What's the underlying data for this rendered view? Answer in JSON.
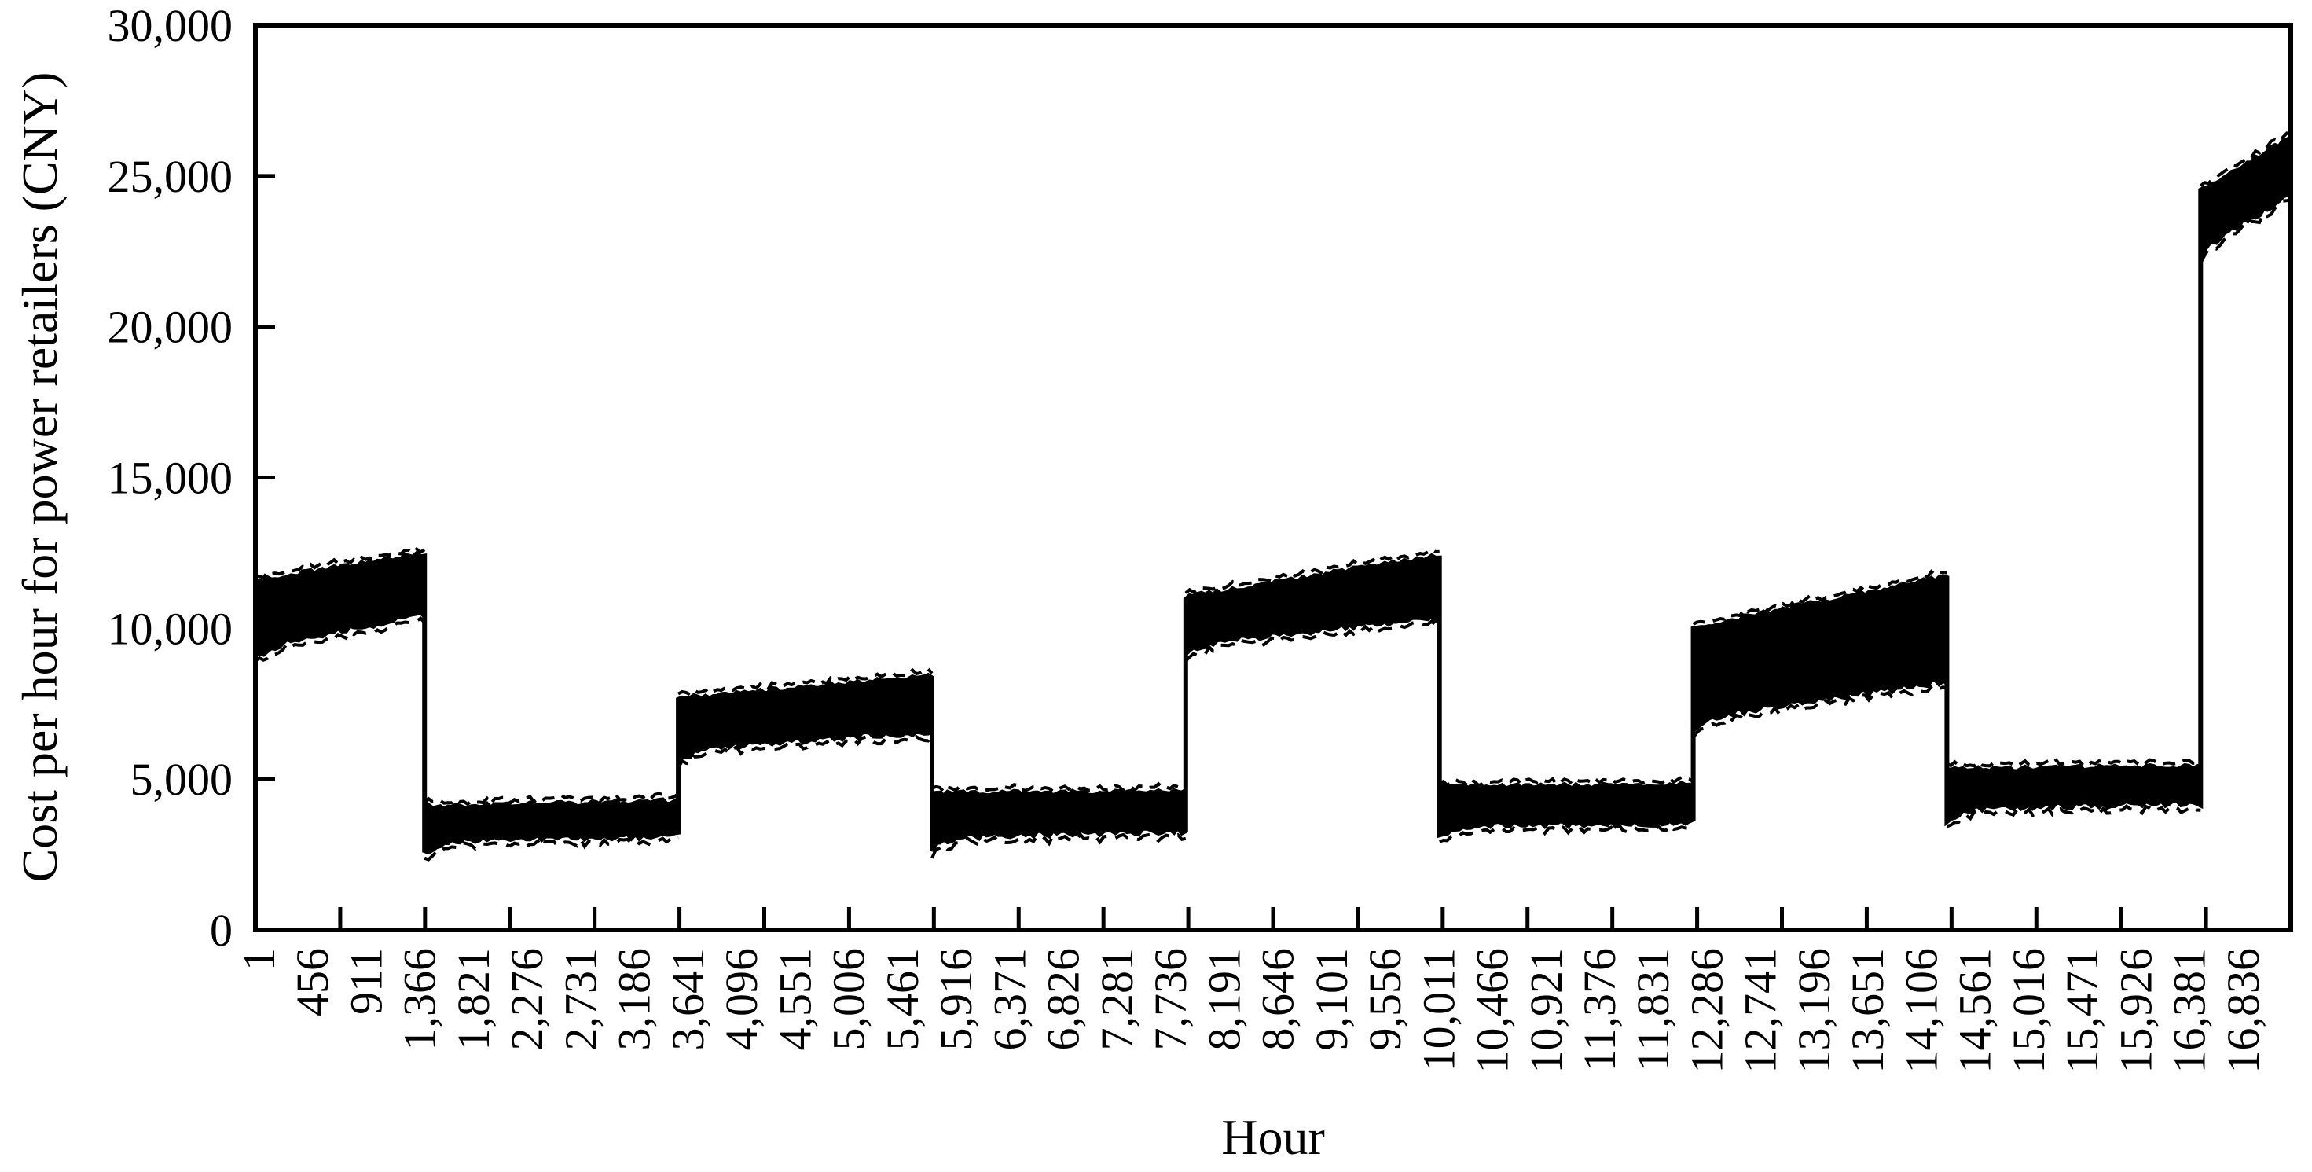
{
  "figure": {
    "background": "#ffffff",
    "ink": "#000000"
  },
  "chart_data": {
    "type": "area",
    "title": "",
    "xlabel": "Hour",
    "ylabel": "Cost per hour for power retailers (CNY)",
    "x_unit": "hour",
    "x_range": [
      1,
      17520
    ],
    "ylim": [
      0,
      30000
    ],
    "grid": "off",
    "legend": "none",
    "frame": "full-box, ticks pointing inward",
    "y_tick_values": [
      0,
      5000,
      10000,
      15000,
      20000,
      25000,
      30000
    ],
    "y_tick_labels": [
      "0",
      "5,000",
      "10,000",
      "15,000",
      "20,000",
      "25,000",
      "30,000"
    ],
    "x_axis_tick_step_hours": 730,
    "x_axis_tick_count": 23,
    "x_label_step_hours": 455,
    "x_labels": [
      "1",
      "456",
      "911",
      "1,366",
      "1,821",
      "2,276",
      "2,731",
      "3,186",
      "3,641",
      "4,096",
      "4,551",
      "5,006",
      "5,461",
      "5,916",
      "6,371",
      "6,826",
      "7,281",
      "7,736",
      "8,191",
      "8,646",
      "9,101",
      "9,556",
      "10,011",
      "10,466",
      "10,921",
      "11,376",
      "11,831",
      "12,286",
      "12,741",
      "13,196",
      "13,651",
      "14,106",
      "14,561",
      "15,016",
      "15,471",
      "15,926",
      "16,381",
      "16,836"
    ],
    "series_description": "Dense hourly cost curve forming a solid black min-max envelope band with step changes between seasonal price tiers",
    "band_segments": [
      {
        "from_hour": 1,
        "to_hour": 1456,
        "top_start": 11550,
        "top_end": 12450,
        "bottom_start": 9450,
        "bottom_end": 10500
      },
      {
        "from_hour": 1456,
        "to_hour": 3640,
        "top_start": 4050,
        "top_end": 4250,
        "bottom_start": 3000,
        "bottom_end": 3200
      },
      {
        "from_hour": 3640,
        "to_hour": 5824,
        "top_start": 7650,
        "top_end": 8400,
        "bottom_start": 6050,
        "bottom_end": 6650
      },
      {
        "from_hour": 5824,
        "to_hour": 8008,
        "top_start": 4500,
        "top_end": 4550,
        "bottom_start": 3150,
        "bottom_end": 3350
      },
      {
        "from_hour": 8008,
        "to_hour": 10192,
        "top_start": 11000,
        "top_end": 12400,
        "bottom_start": 9550,
        "bottom_end": 10400
      },
      {
        "from_hour": 10192,
        "to_hour": 12376,
        "top_start": 4700,
        "top_end": 4800,
        "bottom_start": 3550,
        "bottom_end": 3600
      },
      {
        "from_hour": 12376,
        "to_hour": 14560,
        "top_start": 10000,
        "top_end": 11700,
        "bottom_start": 7100,
        "bottom_end": 8300
      },
      {
        "from_hour": 14560,
        "to_hour": 16744,
        "top_start": 5300,
        "top_end": 5400,
        "bottom_start": 4100,
        "bottom_end": 4250
      },
      {
        "from_hour": 16744,
        "to_hour": 17520,
        "top_start": 24500,
        "top_end": 26250,
        "bottom_start": 22800,
        "bottom_end": 24400
      }
    ]
  }
}
